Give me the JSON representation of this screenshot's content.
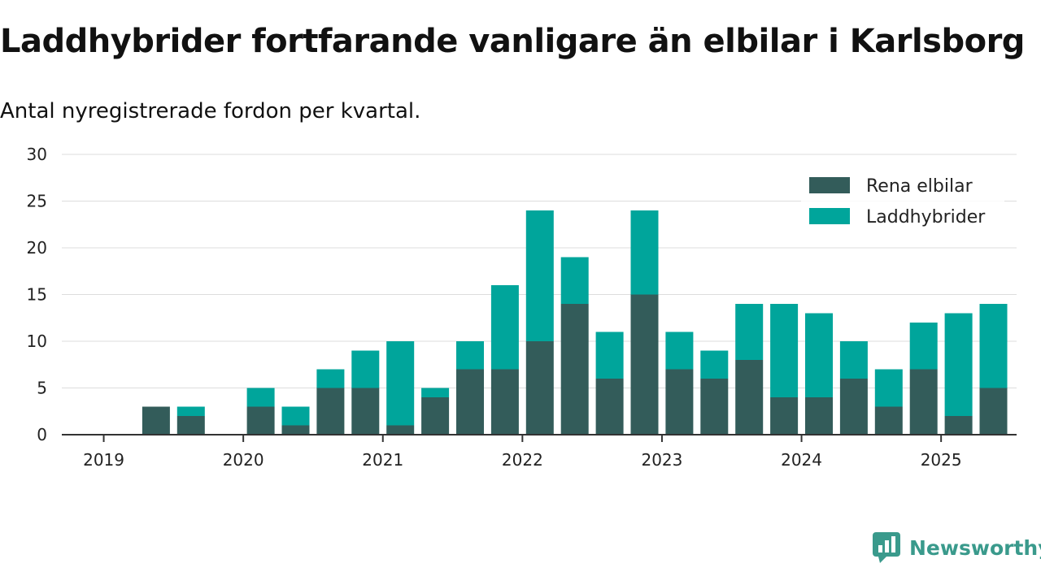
{
  "title": "Laddhybrider fortfarande vanligare än elbilar i Karlsborg",
  "subtitle": "Antal nyregistrerade fordon per kvartal.",
  "brand": {
    "name": "Newsworthy",
    "icon": "newsworthy-logo-icon"
  },
  "colors": {
    "electric": "#335c5a",
    "hybrid": "#00a59b",
    "grid": "#dddddd",
    "axis": "#333333"
  },
  "chart_data": {
    "type": "bar",
    "stacked": true,
    "categories": [
      "2019-Q1",
      "2019-Q2",
      "2019-Q3",
      "2019-Q4",
      "2020-Q1",
      "2020-Q2",
      "2020-Q3",
      "2020-Q4",
      "2021-Q1",
      "2021-Q2",
      "2021-Q3",
      "2021-Q4",
      "2022-Q1",
      "2022-Q2",
      "2022-Q3",
      "2022-Q4",
      "2023-Q1",
      "2023-Q2",
      "2023-Q3",
      "2023-Q4",
      "2024-Q1",
      "2024-Q2",
      "2024-Q3",
      "2024-Q4",
      "2025-Q1",
      "2025-Q2"
    ],
    "series": [
      {
        "name": "Rena elbilar",
        "values": [
          0,
          3,
          2,
          0,
          3,
          1,
          5,
          5,
          1,
          4,
          7,
          7,
          10,
          14,
          6,
          15,
          7,
          6,
          8,
          4,
          4,
          6,
          3,
          7,
          2,
          5
        ]
      },
      {
        "name": "Laddhybrider",
        "values": [
          0,
          0,
          1,
          0,
          2,
          2,
          2,
          4,
          9,
          1,
          3,
          9,
          14,
          5,
          5,
          9,
          4,
          3,
          6,
          10,
          9,
          4,
          4,
          5,
          11,
          9
        ]
      }
    ],
    "xticks": [
      "2019",
      "2020",
      "2021",
      "2022",
      "2023",
      "2024",
      "2025"
    ],
    "yticks": [
      0,
      5,
      10,
      15,
      20,
      25,
      30
    ],
    "ylim": [
      0,
      30
    ],
    "xlabel": "",
    "ylabel": "",
    "grid": true,
    "legend": "top-right"
  }
}
